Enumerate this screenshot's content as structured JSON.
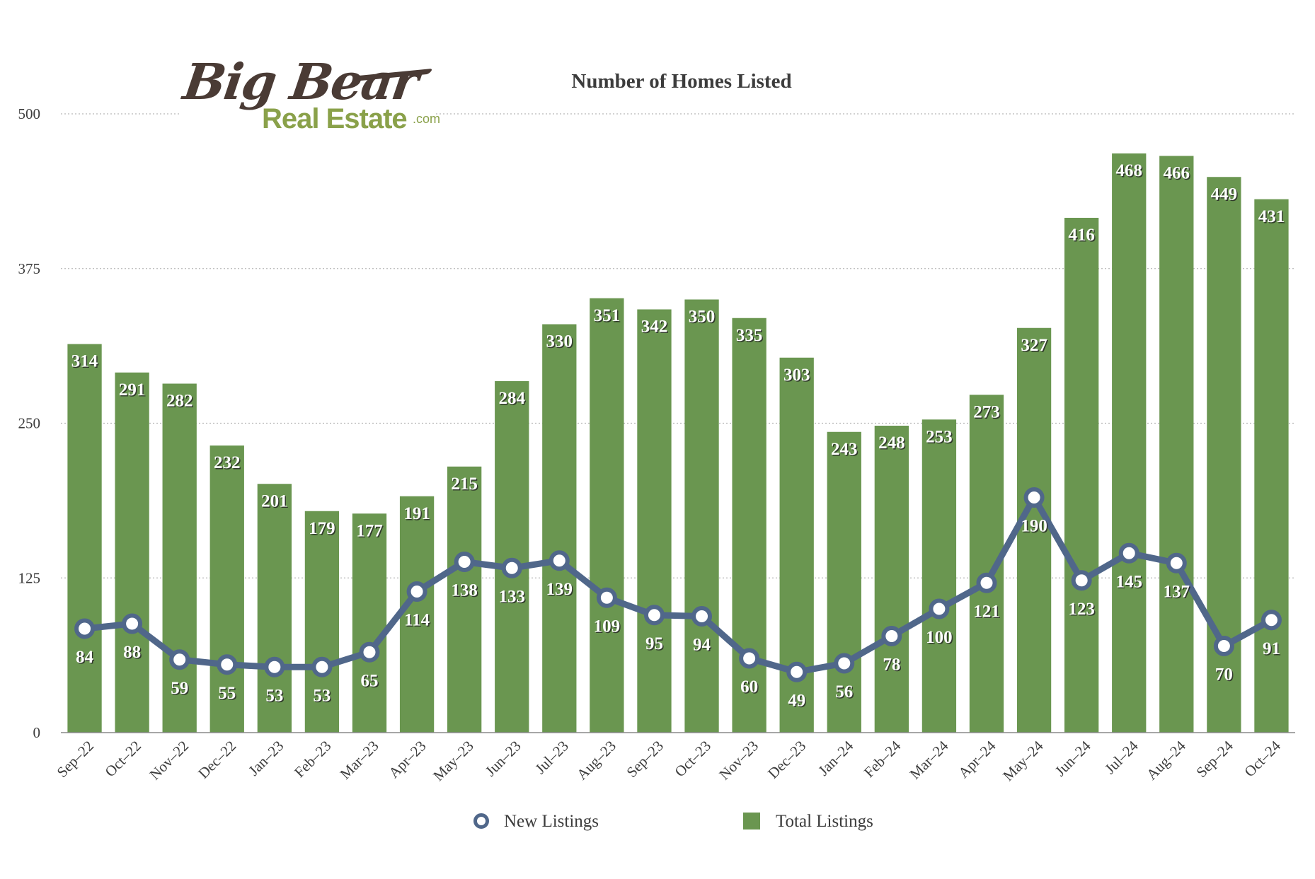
{
  "logo": {
    "line1": "Big Bear",
    "line2": "Real Estate",
    "suffix": ".com"
  },
  "colors": {
    "bar": "#6a9650",
    "line": "#50678a",
    "grid": "#b8b8b8",
    "text": "#3c3c3c"
  },
  "chart_data": {
    "type": "bar",
    "title": "Number of Homes Listed",
    "xlabel": "",
    "ylabel": "",
    "ylim": [
      0,
      500
    ],
    "yticks": [
      0,
      125,
      250,
      375,
      500
    ],
    "grid": true,
    "legend_position": "bottom",
    "categories": [
      "Sep-22",
      "Oct-22",
      "Nov-22",
      "Dec-22",
      "Jan-23",
      "Feb-23",
      "Mar-23",
      "Apr-23",
      "May-23",
      "Jun-23",
      "Jul-23",
      "Aug-23",
      "Sep-23",
      "Oct-23",
      "Nov-23",
      "Dec-23",
      "Jan-24",
      "Feb-24",
      "Mar-24",
      "Apr-24",
      "May-24",
      "Jun-24",
      "Jul-24",
      "Aug-24",
      "Sep-24",
      "Oct-24"
    ],
    "series": [
      {
        "name": "New Listings",
        "type": "line",
        "values": [
          84,
          88,
          59,
          55,
          53,
          53,
          65,
          114,
          138,
          133,
          139,
          109,
          95,
          94,
          60,
          49,
          56,
          78,
          100,
          121,
          190,
          123,
          145,
          137,
          70,
          91
        ]
      },
      {
        "name": "Total Listings",
        "type": "bar",
        "values": [
          314,
          291,
          282,
          232,
          201,
          179,
          177,
          191,
          215,
          284,
          330,
          351,
          342,
          350,
          335,
          303,
          243,
          248,
          253,
          273,
          327,
          416,
          468,
          466,
          449,
          431
        ]
      }
    ]
  }
}
